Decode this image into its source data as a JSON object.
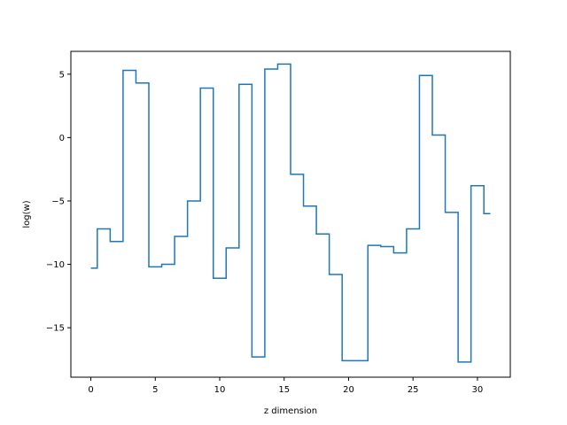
{
  "chart_data": {
    "type": "line",
    "drawstyle": "steps-mid",
    "xlabel": "z dimension",
    "ylabel": "log(w)",
    "xlim": [
      -1.55,
      32.55
    ],
    "ylim": [
      -18.9,
      6.8
    ],
    "xticks": [
      0,
      5,
      10,
      15,
      20,
      25,
      30
    ],
    "yticks": [
      5,
      0,
      -5,
      -10,
      -15
    ],
    "ytick_labels": [
      "5",
      "0",
      "−5",
      "−10",
      "−15"
    ],
    "grid": false,
    "legend": "none",
    "series": [
      {
        "color": "#1f77b4",
        "x": [
          0,
          1,
          2,
          3,
          4,
          5,
          6,
          7,
          8,
          9,
          10,
          11,
          12,
          13,
          14,
          15,
          16,
          17,
          18,
          19,
          20,
          21,
          22,
          23,
          24,
          25,
          26,
          27,
          28,
          29,
          30,
          31
        ],
        "y": [
          -10.3,
          -7.2,
          -8.2,
          5.3,
          4.3,
          -10.2,
          -10.0,
          -7.8,
          -5.0,
          3.9,
          -11.1,
          -8.7,
          4.2,
          -17.3,
          5.4,
          5.8,
          -2.9,
          -5.4,
          -7.6,
          -10.8,
          -17.6,
          -17.6,
          -8.5,
          -8.6,
          -9.1,
          -7.2,
          4.9,
          0.2,
          -5.9,
          -17.7,
          -3.8,
          -6.0
        ]
      }
    ]
  }
}
